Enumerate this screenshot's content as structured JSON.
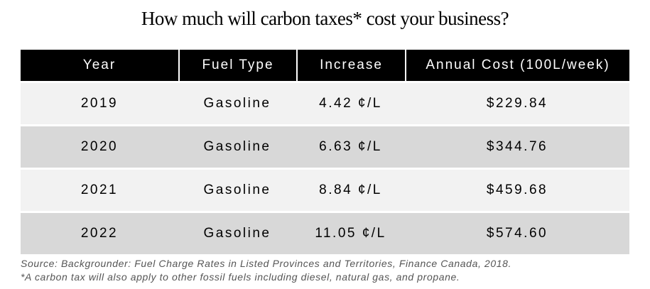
{
  "title": "How much will carbon taxes* cost your business?",
  "table": {
    "headers": [
      "Year",
      "Fuel Type",
      "Increase",
      "Annual Cost (100L/week)"
    ],
    "rows": [
      [
        "2019",
        "Gasoline",
        "4.42 ¢/L",
        "$229.84"
      ],
      [
        "2020",
        "Gasoline",
        "6.63 ¢/L",
        "$344.76"
      ],
      [
        "2021",
        "Gasoline",
        "8.84 ¢/L",
        "$459.68"
      ],
      [
        "2022",
        "Gasoline",
        "11.05 ¢/L",
        "$574.60"
      ]
    ]
  },
  "footnotes": {
    "source": "Source: Backgrounder: Fuel Charge Rates in Listed Provinces and Territories, Finance Canada, 2018.",
    "note": "*A carbon tax will also apply to other fossil fuels including diesel, natural gas, and propane."
  },
  "colors": {
    "header_bg": "#000000",
    "row_light": "#f2f2f2",
    "row_dark": "#d8d8d8"
  }
}
